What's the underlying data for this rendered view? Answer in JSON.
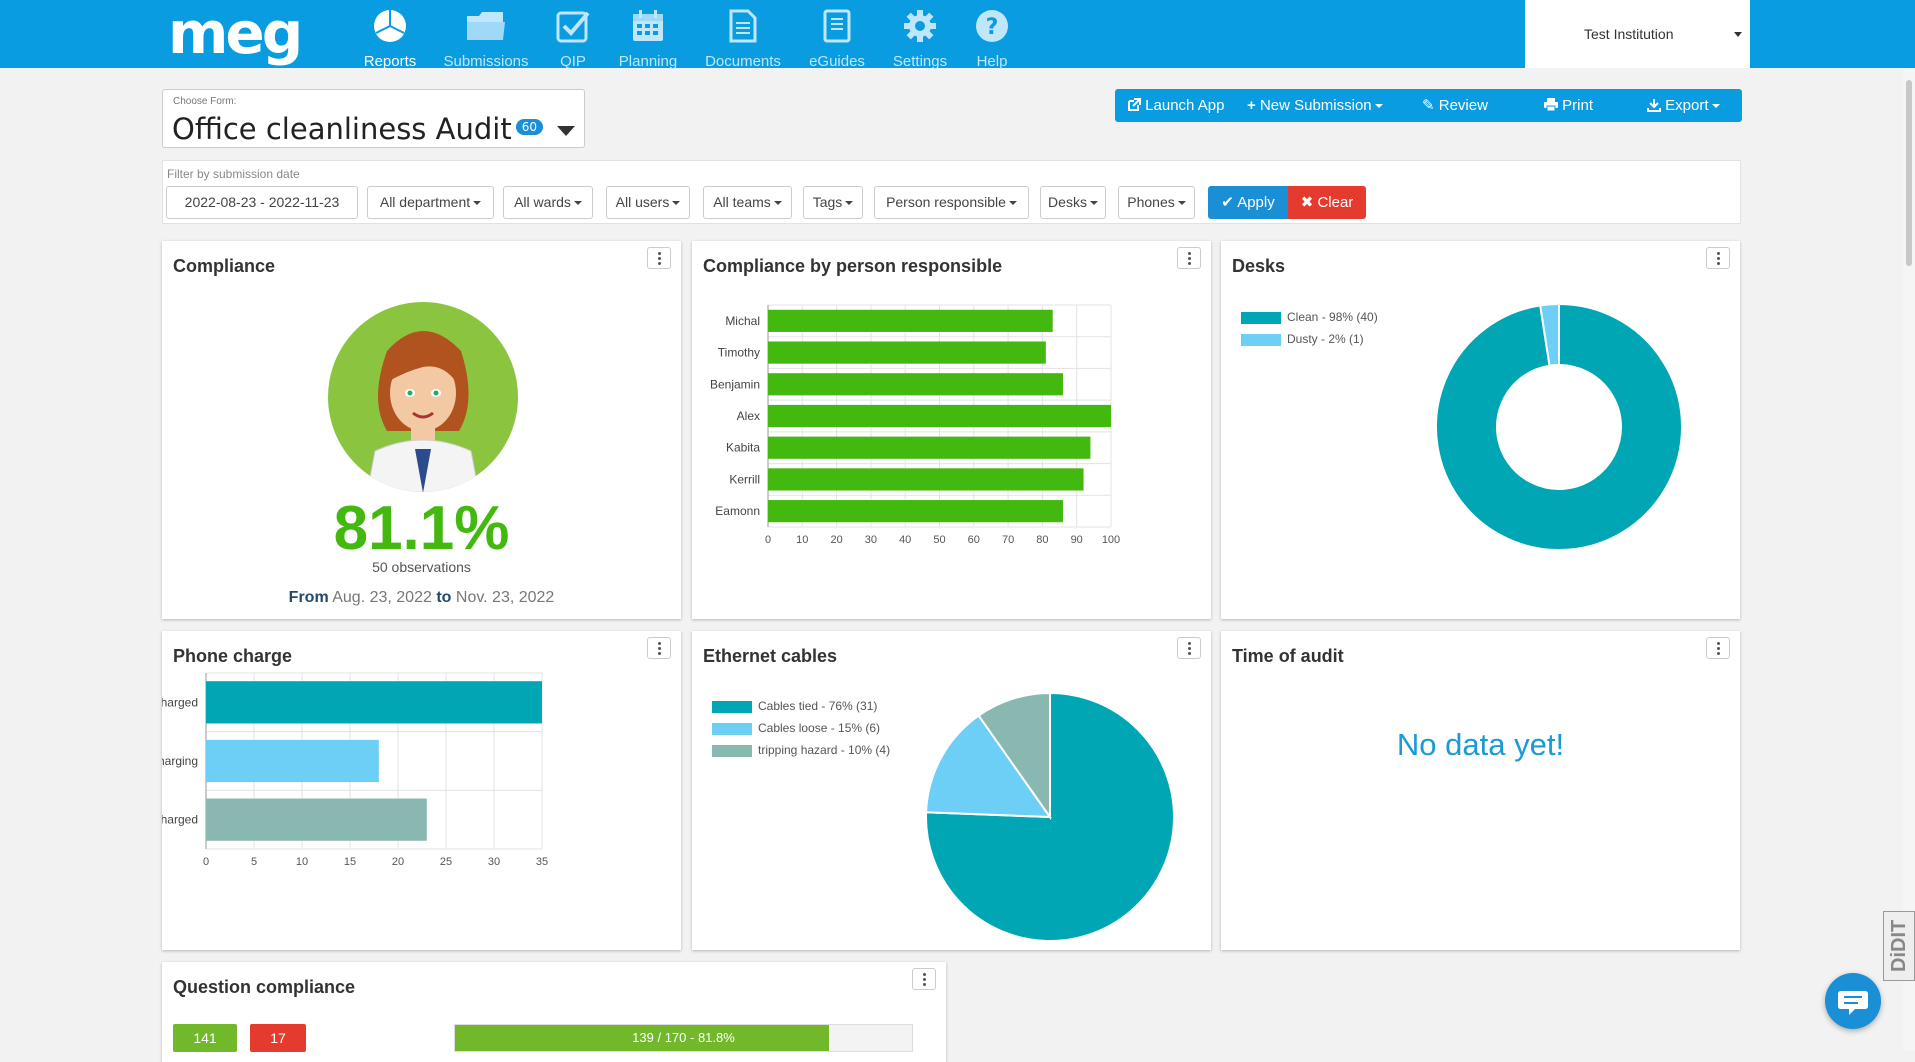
{
  "nav": {
    "logo": "meg",
    "items": [
      {
        "label": "Reports",
        "icon": "reports-pie-icon"
      },
      {
        "label": "Submissions",
        "icon": "folder-icon"
      },
      {
        "label": "QIP",
        "icon": "checkbox-icon"
      },
      {
        "label": "Planning",
        "icon": "calendar-icon"
      },
      {
        "label": "Documents",
        "icon": "document-icon"
      },
      {
        "label": "eGuides",
        "icon": "book-icon"
      },
      {
        "label": "Settings",
        "icon": "gear-icon"
      },
      {
        "label": "Help",
        "icon": "help-icon"
      }
    ],
    "institution": "Test Institution"
  },
  "form": {
    "caption": "Choose Form:",
    "title": "Office cleanliness Audit",
    "count": "60"
  },
  "actions": {
    "launch_app": "Launch App",
    "new_submission": "New Submission",
    "review": "Review",
    "print": "Print",
    "export": "Export"
  },
  "filters": {
    "caption": "Filter by submission date",
    "date_range": "2022-08-23 - 2022-11-23",
    "department": "All department",
    "wards": "All wards",
    "users": "All users",
    "teams": "All teams",
    "tags": "Tags",
    "person_responsible": "Person responsible",
    "desks": "Desks",
    "phones": "Phones",
    "apply": "Apply",
    "clear": "Clear"
  },
  "compliance": {
    "title": "Compliance",
    "value": "81.1%",
    "observations": "50 observations",
    "from_label": "From",
    "from_date": "Aug. 23, 2022",
    "to_label": "to",
    "to_date": "Nov. 23, 2022"
  },
  "chart_data": [
    {
      "type": "bar",
      "orientation": "horizontal",
      "title": "Compliance by person responsible",
      "categories": [
        "Michal",
        "Timothy",
        "Benjamin",
        "Alex",
        "Kabita",
        "Kerrill",
        "Eamonn"
      ],
      "values": [
        83,
        81,
        86,
        100,
        94,
        92,
        86
      ],
      "xlim": [
        0,
        100
      ],
      "xticks": [
        0,
        10,
        20,
        30,
        40,
        50,
        60,
        70,
        80,
        90,
        100
      ],
      "grid": true,
      "color": "#43b80e"
    },
    {
      "type": "pie",
      "variant": "donut",
      "title": "Desks",
      "labels": [
        "Clean - 98% (40)",
        "Dusty - 2% (1)"
      ],
      "values": [
        40,
        1
      ],
      "colors": [
        "#00a6b3",
        "#6ecff6"
      ],
      "legend": "top-left"
    },
    {
      "type": "bar",
      "orientation": "horizontal",
      "title": "Phone charge",
      "categories": [
        "charged",
        "charging",
        "not charged"
      ],
      "values": [
        35,
        18,
        23
      ],
      "colors": [
        "#00a6b3",
        "#6ecff6",
        "#88b8b0"
      ],
      "xlim": [
        0,
        35
      ],
      "xticks": [
        0,
        5,
        10,
        15,
        20,
        25,
        30,
        35
      ],
      "grid": true
    },
    {
      "type": "pie",
      "title": "Ethernet cables",
      "labels": [
        "Cables tied - 76% (31)",
        "Cables loose - 15% (6)",
        "tripping hazard - 10% (4)"
      ],
      "values": [
        31,
        6,
        4
      ],
      "colors": [
        "#00a6b3",
        "#6ecff6",
        "#88b8b0"
      ],
      "legend": "top-left"
    }
  ],
  "time_of_audit": {
    "title": "Time of audit",
    "empty_message": "No data yet!"
  },
  "question_compliance": {
    "title": "Question compliance",
    "green_count": "141",
    "red_count": "17",
    "progress_label": "139 / 170 - 81.8%",
    "progress_fraction": 0.818
  },
  "widgets": {
    "didit": "DiDIT"
  },
  "colors": {
    "header": "#0a9ce0",
    "accent": "#1a8fd6",
    "green": "#43b80e",
    "teal": "#00a6b3",
    "light_blue": "#6ecff6",
    "grey_teal": "#88b8b0",
    "danger": "#e53b2e"
  }
}
